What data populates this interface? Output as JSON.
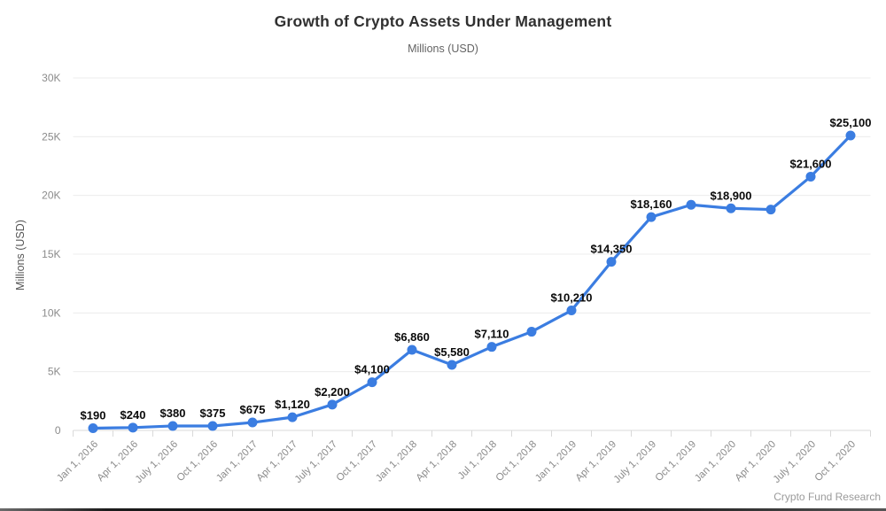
{
  "page": {
    "title": "Growth of Crypto Assets Under Management",
    "subtitle": "Millions (USD)",
    "y_axis_title": "Millions (USD)",
    "attribution": "Crypto Fund Research"
  },
  "chart_data": {
    "type": "line",
    "title": "Growth of Crypto Assets Under Management",
    "subtitle": "Millions (USD)",
    "xlabel": "",
    "ylabel": "Millions (USD)",
    "ylim": [
      0,
      30000
    ],
    "ytick_values": [
      0,
      5000,
      10000,
      15000,
      20000,
      25000,
      30000
    ],
    "ytick_labels": [
      "0",
      "5K",
      "10K",
      "15K",
      "20K",
      "25K",
      "30K"
    ],
    "grid": "horizontal",
    "legend": "none",
    "line_color": "#3b7de1",
    "label_color": "#0a0a0a",
    "axis_text_color": "#8b8b8b",
    "categories": [
      "Jan 1, 2016",
      "Apr 1, 2016",
      "July 1, 2016",
      "Oct 1, 2016",
      "Jan 1, 2017",
      "Apr 1, 2017",
      "July 1, 2017",
      "Oct 1, 2017",
      "Jan 1, 2018",
      "Apr 1, 2018",
      "Jul 1, 2018",
      "Oct 1, 2018",
      "Jan 1, 2019",
      "Apr 1, 2019",
      "July 1, 2019",
      "Oct 1, 2019",
      "Jan 1, 2020",
      "Apr 1, 2020",
      "July 1, 2020",
      "Oct 1, 2020"
    ],
    "series": [
      {
        "name": "Crypto Assets Under Management",
        "values": [
          190,
          240,
          380,
          375,
          675,
          1120,
          2200,
          4100,
          6860,
          5580,
          7110,
          8400,
          10210,
          14350,
          18160,
          19200,
          18900,
          18800,
          21600,
          25100
        ],
        "point_labels": [
          "$190",
          "$240",
          "$380",
          "$375",
          "$675",
          "$1,120",
          "$2,200",
          "$4,100",
          "$6,860",
          "$5,580",
          "$7,110",
          "",
          "$10,210",
          "$14,350",
          "$18,160",
          "",
          "$18,900",
          "",
          "$21,600",
          "$25,100"
        ]
      }
    ],
    "attribution": "Crypto Fund Research"
  }
}
